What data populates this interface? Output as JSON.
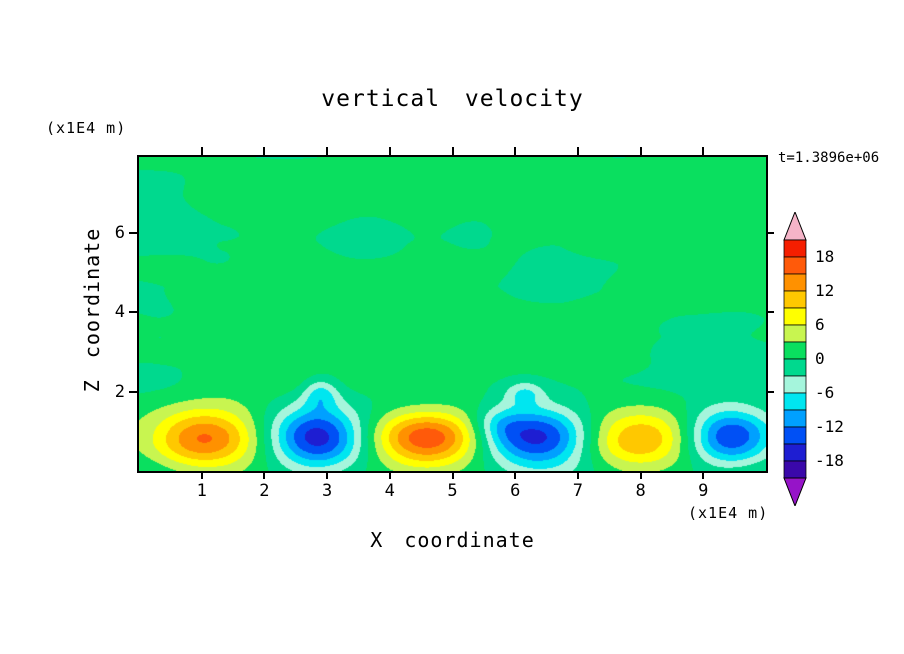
{
  "chart_data": {
    "type": "heatmap",
    "title": "vertical velocity",
    "time_label": "t=1.3896e+06",
    "xlabel": "X coordinate",
    "ylabel": "Z coordinate",
    "x_unit": "(x1E4 m)",
    "y_unit": "(x1E4 m)",
    "xlim": [
      0,
      10
    ],
    "ylim": [
      0,
      7.9
    ],
    "xticks": [
      1,
      2,
      3,
      4,
      5,
      6,
      7,
      8,
      9
    ],
    "yticks": [
      2,
      4,
      6
    ],
    "grid": false,
    "legend_position": "right-colorbar",
    "colorbar": {
      "labels": [
        18,
        12,
        6,
        0,
        -6,
        -12,
        -18
      ],
      "level_min": -21,
      "level_max": 21,
      "level_step": 3,
      "band_colors_top_to_bottom": [
        "#F51E00",
        "#FF5A0A",
        "#FF9100",
        "#FFC800",
        "#FFFF00",
        "#C8F550",
        "#0ADF5F",
        "#00D98E",
        "#A5F5DC",
        "#00E6F0",
        "#00A0FF",
        "#0050F5",
        "#1E1ED2",
        "#3A08AA"
      ],
      "over_color": "#F5B4C8",
      "under_color": "#9614C8"
    },
    "field_model": {
      "description": "vertical velocity w(x,z): near-zero (green) interior with alternating updraft (warm) and downdraft (cool) cells along the lower boundary",
      "background_bias": 0.5,
      "noise_amplitude": 1.4,
      "blobs": [
        {
          "x": 1.05,
          "z": 0.8,
          "sx": 0.58,
          "sz": 0.52,
          "a": 14.5
        },
        {
          "x": 2.85,
          "z": 0.85,
          "sx": 0.52,
          "sz": 0.55,
          "a": -17
        },
        {
          "x": 2.9,
          "z": 1.95,
          "sx": 0.2,
          "sz": 0.28,
          "a": -7
        },
        {
          "x": 4.6,
          "z": 0.8,
          "sx": 0.62,
          "sz": 0.5,
          "a": 17.5
        },
        {
          "x": 6.4,
          "z": 0.85,
          "sx": 0.6,
          "sz": 0.55,
          "a": -17.5
        },
        {
          "x": 5.75,
          "z": 1.15,
          "sx": 0.3,
          "sz": 0.35,
          "a": -5
        },
        {
          "x": 6.15,
          "z": 1.95,
          "sx": 0.22,
          "sz": 0.22,
          "a": -6
        },
        {
          "x": 8.0,
          "z": 0.85,
          "sx": 0.68,
          "sz": 0.5,
          "a": 12
        },
        {
          "x": 9.4,
          "z": 0.85,
          "sx": 0.5,
          "sz": 0.5,
          "a": -15.5
        }
      ]
    }
  }
}
